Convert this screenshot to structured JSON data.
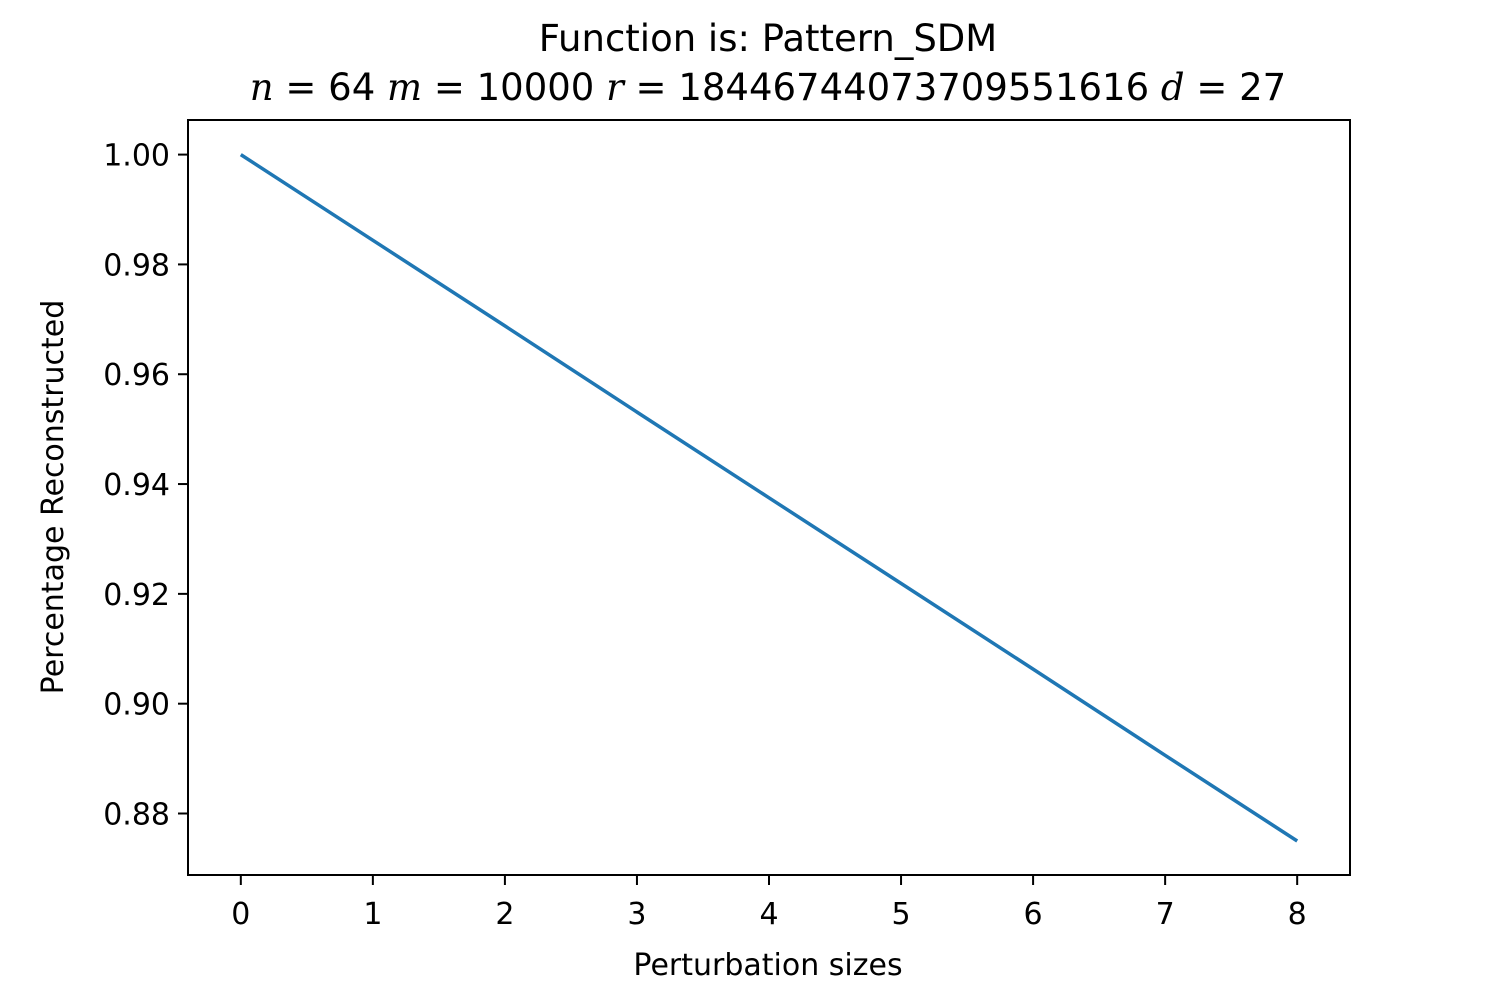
{
  "chart_data": {
    "type": "line",
    "title": "Function is: Pattern_SDM",
    "subtitle": {
      "parts": [
        {
          "var": "n",
          "value": "64"
        },
        {
          "var": "m",
          "value": "10000"
        },
        {
          "var": "r",
          "value": "18446744073709551616"
        },
        {
          "var": "d",
          "value": "27"
        }
      ]
    },
    "xlabel": "Perturbation sizes",
    "ylabel": "Percentage Reconstructed",
    "x": [
      0,
      1,
      2,
      3,
      4,
      5,
      6,
      7,
      8
    ],
    "series": [
      {
        "values": [
          1.0,
          0.9844,
          0.9688,
          0.9531,
          0.9375,
          0.9219,
          0.9063,
          0.8906,
          0.875
        ],
        "color": "#1f77b4"
      }
    ],
    "xlim": [
      -0.4,
      8.4
    ],
    "ylim": [
      0.8688,
      1.0063
    ],
    "xticks": [
      0,
      1,
      2,
      3,
      4,
      5,
      6,
      7,
      8
    ],
    "xtick_labels": [
      "0",
      "1",
      "2",
      "3",
      "4",
      "5",
      "6",
      "7",
      "8"
    ],
    "yticks": [
      1.0,
      0.98,
      0.96,
      0.94,
      0.92,
      0.9,
      0.88
    ],
    "ytick_labels": [
      "1.00",
      "0.98",
      "0.96",
      "0.94",
      "0.92",
      "0.90",
      "0.88"
    ],
    "grid": false
  }
}
